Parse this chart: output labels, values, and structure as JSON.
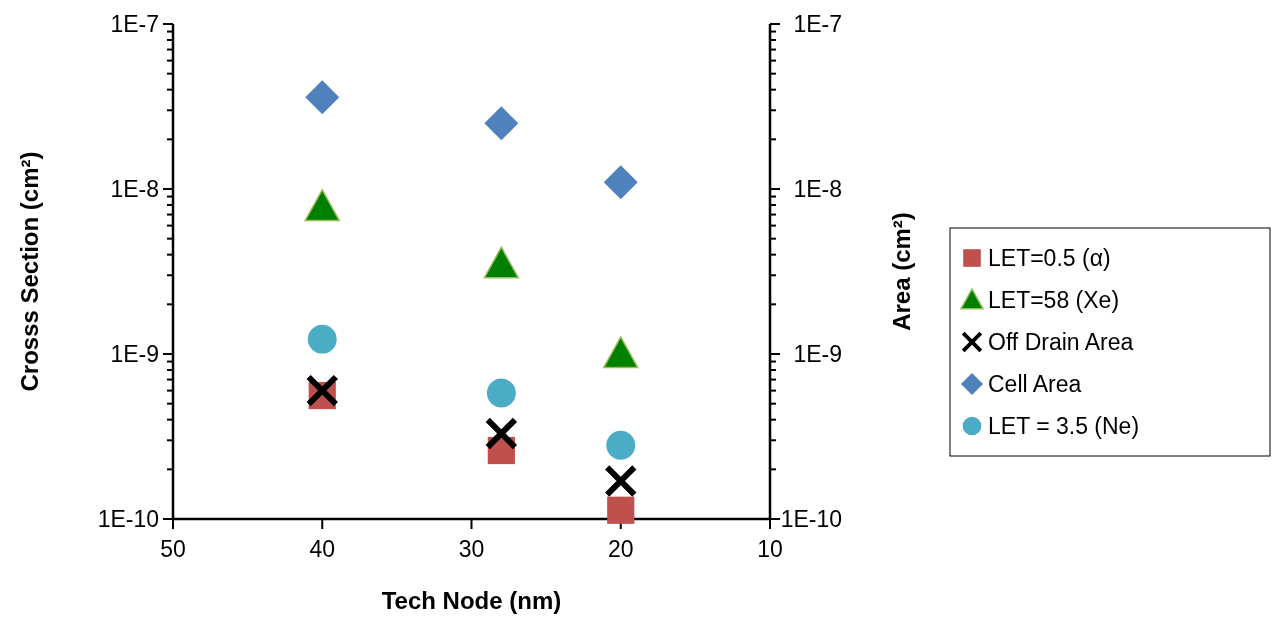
{
  "chart_data": {
    "type": "scatter",
    "xlabel": "Tech Node (nm)",
    "ylabel": "Crosss Section (cm²)",
    "y2label": "Area (cm²)",
    "log": "y",
    "xlim": [
      50,
      10
    ],
    "xticks": [
      50,
      40,
      30,
      20,
      10
    ],
    "ylim": [
      1e-10,
      1e-07
    ],
    "yticks": [
      {
        "value": 1e-10,
        "label": "1E-10"
      },
      {
        "value": 2e-10,
        "label": null
      },
      {
        "value": 3e-10,
        "label": null
      },
      {
        "value": 4e-10,
        "label": null
      },
      {
        "value": 5e-10,
        "label": null
      },
      {
        "value": 6e-10,
        "label": null
      },
      {
        "value": 7e-10,
        "label": null
      },
      {
        "value": 8e-10,
        "label": null
      },
      {
        "value": 9e-10,
        "label": null
      },
      {
        "value": 1e-09,
        "label": "1E-9"
      },
      {
        "value": 2e-09,
        "label": null
      },
      {
        "value": 3e-09,
        "label": null
      },
      {
        "value": 4e-09,
        "label": null
      },
      {
        "value": 5e-09,
        "label": null
      },
      {
        "value": 6e-09,
        "label": null
      },
      {
        "value": 7e-09,
        "label": null
      },
      {
        "value": 8e-09,
        "label": null
      },
      {
        "value": 9e-09,
        "label": null
      },
      {
        "value": 1e-08,
        "label": "1E-8"
      },
      {
        "value": 2e-08,
        "label": null
      },
      {
        "value": 3e-08,
        "label": null
      },
      {
        "value": 4e-08,
        "label": null
      },
      {
        "value": 5e-08,
        "label": null
      },
      {
        "value": 6e-08,
        "label": null
      },
      {
        "value": 7e-08,
        "label": null
      },
      {
        "value": 8e-08,
        "label": null
      },
      {
        "value": 9e-08,
        "label": null
      },
      {
        "value": 1e-07,
        "label": "1E-7"
      }
    ],
    "grid": false,
    "legend": "right",
    "series": [
      {
        "name": "LET=0.5 (α)",
        "color": "#c0504d",
        "marker": "square",
        "x": [
          40,
          28,
          20
        ],
        "values": [
          5.6e-10,
          2.6e-10,
          1.13e-10
        ]
      },
      {
        "name": "LET=58 (Xe)",
        "color": "#008000",
        "marker": "triangle",
        "x": [
          40,
          28,
          20
        ],
        "values": [
          7.8e-09,
          3.5e-09,
          1e-09
        ]
      },
      {
        "name": "Off Drain Area",
        "color": "#000000",
        "marker": "cross",
        "x": [
          40,
          28,
          20
        ],
        "values": [
          6e-10,
          3.3e-10,
          1.7e-10
        ]
      },
      {
        "name": "Cell Area",
        "color": "#4f81bd",
        "marker": "diamond",
        "x": [
          40,
          28,
          20
        ],
        "values": [
          3.6e-08,
          2.5e-08,
          1.1e-08
        ]
      },
      {
        "name": "LET = 3.5 (Ne)",
        "color": "#4bacc6",
        "marker": "circle",
        "x": [
          40,
          28,
          20
        ],
        "values": [
          1.23e-09,
          5.8e-10,
          2.8e-10
        ]
      }
    ]
  }
}
